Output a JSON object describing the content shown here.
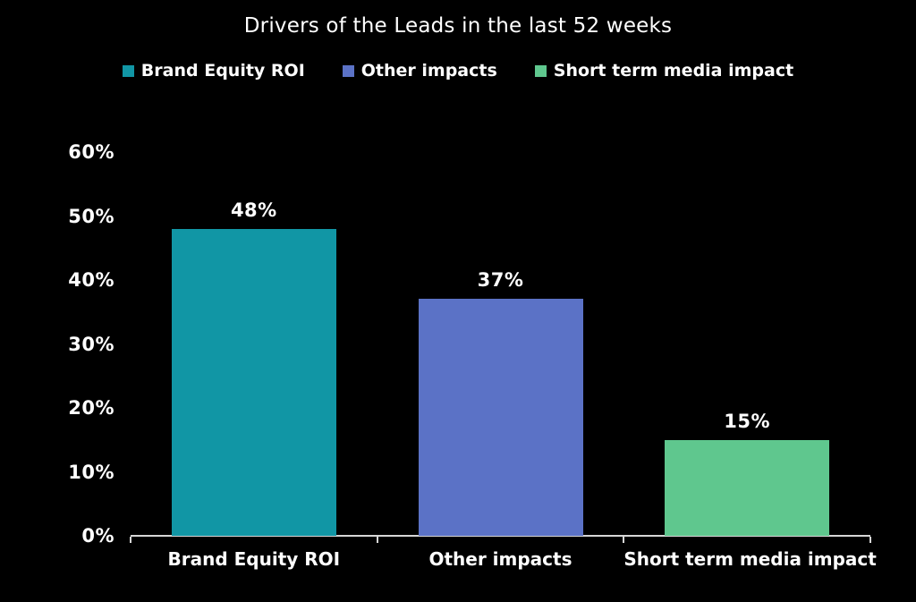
{
  "page": {
    "background": "#000000",
    "text_color": "#ffffff"
  },
  "chart_data": {
    "type": "bar",
    "title": "Drivers of the Leads in the last 52 weeks",
    "categories": [
      "Brand Equity ROI",
      "Other impacts",
      "Short term media impact"
    ],
    "values": [
      48,
      37,
      15
    ],
    "value_labels": [
      "48%",
      "37%",
      "15%"
    ],
    "bar_colors": [
      "#1196A5",
      "#5B72C6",
      "#5FC78E"
    ],
    "legend": [
      {
        "label": "Brand Equity ROI",
        "color": "#1196A5"
      },
      {
        "label": "Other impacts",
        "color": "#5B72C6"
      },
      {
        "label": "Short term media impact",
        "color": "#5FC78E"
      }
    ],
    "legend_position": "top-center",
    "xlabel": "",
    "ylabel": "",
    "ylim": [
      0,
      60
    ],
    "ytick_step": 10,
    "ytick_labels": [
      "0%",
      "10%",
      "20%",
      "30%",
      "40%",
      "50%",
      "60%"
    ],
    "grid": false,
    "colors": {
      "background": "#000000",
      "text": "#ffffff",
      "axis": "#D6D6D6"
    }
  }
}
